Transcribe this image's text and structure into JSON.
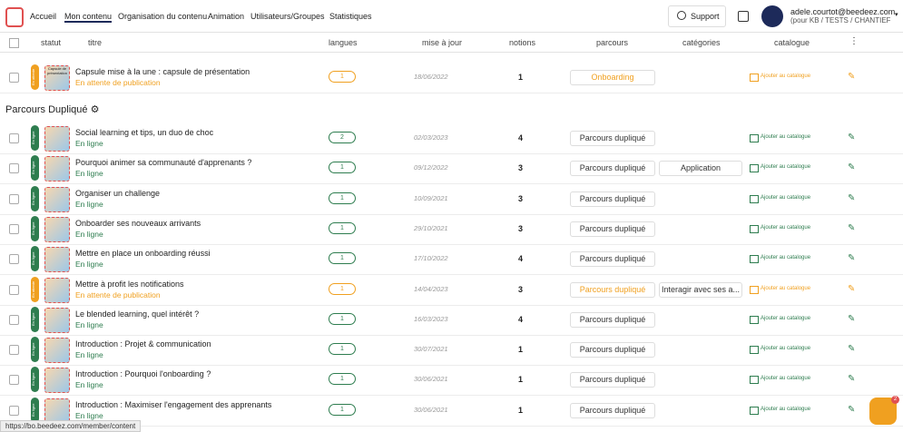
{
  "nav": {
    "items": [
      "Accueil",
      "Mon contenu",
      "Organisation du contenu",
      "Animation",
      "Utilisateurs/Groupes",
      "Statistiques"
    ],
    "support": "Support",
    "user_email": "adele.courtot@beedeez.com",
    "user_org": "(pour KB / TESTS / CHANTIEF"
  },
  "columns": [
    "statut",
    "titre",
    "langues",
    "mise à jour",
    "notions",
    "parcours",
    "catégories",
    "catalogue"
  ],
  "top_row": {
    "tag": "En attente",
    "thumb_text": "Capsule de présentation",
    "title": "Capsule mise à la une : capsule de présentation",
    "status": "En attente de publication",
    "color": "#f0a020",
    "langs": "1",
    "date": "18/06/2022",
    "notions": "1",
    "parcours": "Onboarding",
    "catalogue": "Ajouter au catalogue"
  },
  "group": "Parcours Dupliqué",
  "rows": [
    {
      "tag": "En ligne",
      "title": "Social learning et tips, un duo de choc",
      "status": "En ligne",
      "color": "#2e7d4f",
      "langs": "2",
      "date": "02/03/2023",
      "notions": "4",
      "parcours": "Parcours dupliqué",
      "catalogue": "Ajouter au catalogue"
    },
    {
      "tag": "En ligne",
      "title": "Pourquoi animer sa communauté d'apprenants ?",
      "status": "En ligne",
      "color": "#2e7d4f",
      "langs": "1",
      "date": "09/12/2022",
      "notions": "3",
      "parcours": "Parcours dupliqué",
      "categorie": "Application",
      "catalogue": "Ajouter au catalogue"
    },
    {
      "tag": "En ligne",
      "title": "Organiser un challenge",
      "status": "En ligne",
      "color": "#2e7d4f",
      "langs": "1",
      "date": "10/09/2021",
      "notions": "3",
      "parcours": "Parcours dupliqué",
      "catalogue": "Ajouter au catalogue"
    },
    {
      "tag": "En ligne",
      "title": "Onboarder ses nouveaux arrivants",
      "status": "En ligne",
      "color": "#2e7d4f",
      "langs": "1",
      "date": "29/10/2021",
      "notions": "3",
      "parcours": "Parcours dupliqué",
      "catalogue": "Ajouter au catalogue"
    },
    {
      "tag": "En ligne",
      "title": "Mettre en place un onboarding réussi",
      "status": "En ligne",
      "color": "#2e7d4f",
      "langs": "1",
      "date": "17/10/2022",
      "notions": "4",
      "parcours": "Parcours dupliqué",
      "catalogue": "Ajouter au catalogue"
    },
    {
      "tag": "En attente",
      "title": "Mettre à profit les notifications",
      "status": "En attente de publication",
      "color": "#f0a020",
      "langs": "1",
      "date": "14/04/2023",
      "notions": "3",
      "parcours": "Parcours dupliqué",
      "categorie": "Interagir avec ses a...",
      "catalogue": "Ajouter au catalogue"
    },
    {
      "tag": "En ligne",
      "title": "Le blended learning, quel intérêt ?",
      "status": "En ligne",
      "color": "#2e7d4f",
      "langs": "1",
      "date": "16/03/2023",
      "notions": "4",
      "parcours": "Parcours dupliqué",
      "catalogue": "Ajouter au catalogue"
    },
    {
      "tag": "En ligne",
      "title": "Introduction : Projet & communication",
      "status": "En ligne",
      "color": "#2e7d4f",
      "langs": "1",
      "date": "30/07/2021",
      "notions": "1",
      "parcours": "Parcours dupliqué",
      "catalogue": "Ajouter au catalogue"
    },
    {
      "tag": "En ligne",
      "title": "Introduction : Pourquoi l'onboarding ?",
      "status": "En ligne",
      "color": "#2e7d4f",
      "langs": "1",
      "date": "30/06/2021",
      "notions": "1",
      "parcours": "Parcours dupliqué",
      "catalogue": "Ajouter au catalogue"
    },
    {
      "tag": "En ligne",
      "title": "Introduction : Maximiser l'engagement des apprenants",
      "status": "En ligne",
      "color": "#2e7d4f",
      "langs": "1",
      "date": "30/06/2021",
      "notions": "1",
      "parcours": "Parcours dupliqué",
      "catalogue": "Ajouter au catalogue"
    }
  ],
  "status_bar": "https://bo.beedeez.com/member/content",
  "chat_badge": "2"
}
